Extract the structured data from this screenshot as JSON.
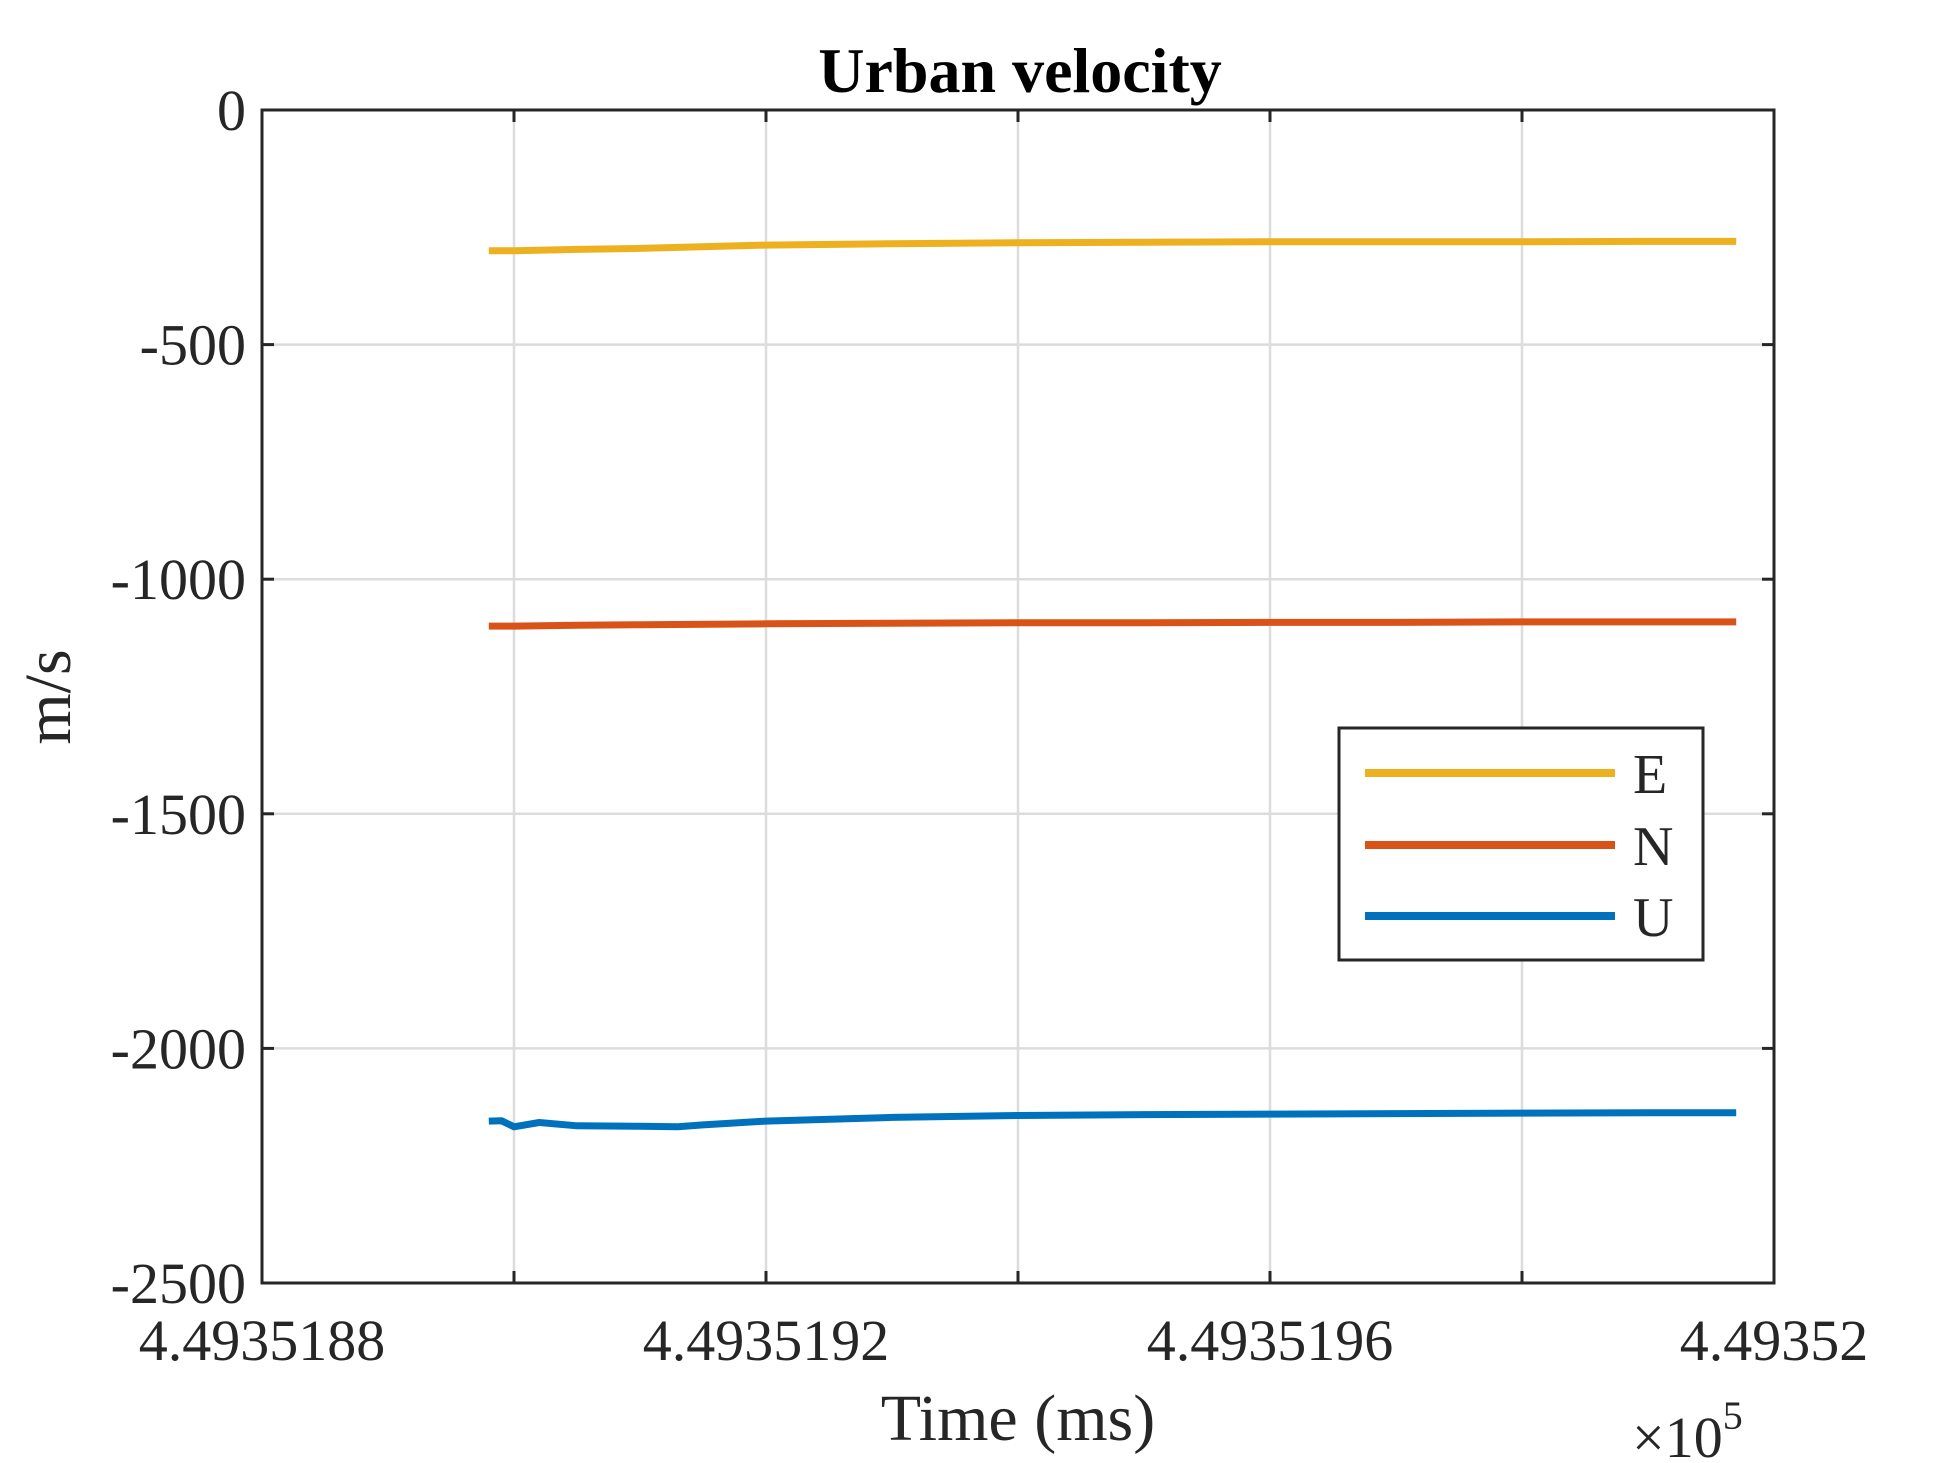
{
  "chart_data": {
    "type": "line",
    "title": "Urban velocity",
    "xlabel": "Time (ms)",
    "ylabel": "m/s",
    "x_multiplier_label": "×10",
    "x_multiplier_exponent": "5",
    "xlim": [
      4.4935188,
      4.49352
    ],
    "ylim": [
      -2500,
      0
    ],
    "x_ticks": [
      4.4935188,
      4.493519,
      4.4935192,
      4.4935194,
      4.4935196,
      4.4935198,
      4.49352
    ],
    "x_tick_labels": [
      {
        "value": 4.4935188,
        "label": "4.4935188"
      },
      {
        "value": 4.4935192,
        "label": "4.4935192"
      },
      {
        "value": 4.4935196,
        "label": "4.4935196"
      },
      {
        "value": 4.49352,
        "label": "4.49352"
      }
    ],
    "y_ticks": [
      0,
      -500,
      -1000,
      -1500,
      -2000,
      -2500
    ],
    "y_tick_labels": [
      "0",
      "-500",
      "-1000",
      "-1500",
      "-2000",
      "-2500"
    ],
    "grid": true,
    "legend_position": "right",
    "series": [
      {
        "name": "E",
        "color": "#EDB120",
        "points": [
          [
            4.49351898,
            -300
          ],
          [
            4.493519,
            -300
          ],
          [
            4.49351905,
            -297
          ],
          [
            4.4935191,
            -295
          ],
          [
            4.4935192,
            -288
          ],
          [
            4.4935193,
            -285
          ],
          [
            4.4935194,
            -283
          ],
          [
            4.4935195,
            -282
          ],
          [
            4.4935196,
            -281
          ],
          [
            4.4935197,
            -281
          ],
          [
            4.4935198,
            -281
          ],
          [
            4.4935199,
            -280
          ],
          [
            4.49351997,
            -280
          ]
        ]
      },
      {
        "name": "N",
        "color": "#D95319",
        "points": [
          [
            4.49351898,
            -1100
          ],
          [
            4.493519,
            -1100
          ],
          [
            4.49351905,
            -1098
          ],
          [
            4.4935191,
            -1097
          ],
          [
            4.4935192,
            -1095
          ],
          [
            4.4935193,
            -1094
          ],
          [
            4.4935194,
            -1093
          ],
          [
            4.4935195,
            -1093
          ],
          [
            4.4935196,
            -1092
          ],
          [
            4.4935197,
            -1092
          ],
          [
            4.4935198,
            -1091
          ],
          [
            4.4935199,
            -1091
          ],
          [
            4.49351997,
            -1091
          ]
        ]
      },
      {
        "name": "U",
        "color": "#0072BD",
        "points": [
          [
            4.49351898,
            -2155
          ],
          [
            4.49351899,
            -2154
          ],
          [
            4.493519,
            -2167
          ],
          [
            4.49351902,
            -2158
          ],
          [
            4.49351905,
            -2165
          ],
          [
            4.4935191,
            -2166
          ],
          [
            4.49351913,
            -2167
          ],
          [
            4.49351915,
            -2163
          ],
          [
            4.4935192,
            -2155
          ],
          [
            4.4935193,
            -2147
          ],
          [
            4.4935194,
            -2143
          ],
          [
            4.4935195,
            -2141
          ],
          [
            4.4935196,
            -2140
          ],
          [
            4.4935197,
            -2139
          ],
          [
            4.4935198,
            -2138
          ],
          [
            4.4935199,
            -2137
          ],
          [
            4.49351997,
            -2137
          ]
        ]
      }
    ]
  }
}
